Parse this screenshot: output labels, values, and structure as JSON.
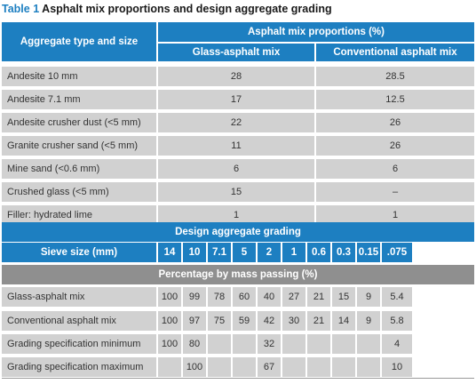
{
  "title": {
    "number": "Table 1",
    "text": "Asphalt mix proportions and design aggregate grading"
  },
  "top_table": {
    "header_type": "Aggregate type and size",
    "header_props": "Asphalt mix proportions (%)",
    "header_glass": "Glass-asphalt mix",
    "header_conv": "Conventional asphalt mix",
    "rows": [
      {
        "label": "Andesite 10 mm",
        "glass": "28",
        "conv": "28.5"
      },
      {
        "label": "Andesite 7.1 mm",
        "glass": "17",
        "conv": "12.5"
      },
      {
        "label": "Andesite crusher dust (<5 mm)",
        "glass": "22",
        "conv": "26"
      },
      {
        "label": "Granite crusher sand (<5 mm)",
        "glass": "11",
        "conv": "26"
      },
      {
        "label": "Mine sand (<0.6 mm)",
        "glass": "6",
        "conv": "6"
      },
      {
        "label": "Crushed glass (<5 mm)",
        "glass": "15",
        "conv": "–"
      },
      {
        "label": "Filler: hydrated lime",
        "glass": "1",
        "conv": "1"
      }
    ]
  },
  "grading": {
    "title": "Design aggregate grading",
    "sieve_label": "Sieve size (mm)",
    "sieves": [
      "14",
      "10",
      "7.1",
      "5",
      "2",
      "1",
      "0.6",
      "0.3",
      "0.15",
      ".075"
    ],
    "pct_label": "Percentage by mass passing (%)",
    "rows": [
      {
        "label": "Glass-asphalt mix",
        "values": [
          "100",
          "99",
          "78",
          "60",
          "40",
          "27",
          "21",
          "15",
          "9",
          "5.4"
        ]
      },
      {
        "label": "Conventional asphalt mix",
        "values": [
          "100",
          "97",
          "75",
          "59",
          "42",
          "30",
          "21",
          "14",
          "9",
          "5.8"
        ]
      },
      {
        "label": "Grading specification minimum",
        "values": [
          "100",
          "80",
          "",
          "",
          "32",
          "",
          "",
          "",
          "",
          "4"
        ]
      },
      {
        "label": "Grading specification maximum",
        "values": [
          "",
          "100",
          "",
          "",
          "67",
          "",
          "",
          "",
          "",
          "10"
        ]
      }
    ]
  },
  "colors": {
    "header_blue": "#1d7fc1",
    "row_gray": "#d1d1d1",
    "band_gray": "#8f8f8f",
    "text": "#333333"
  }
}
